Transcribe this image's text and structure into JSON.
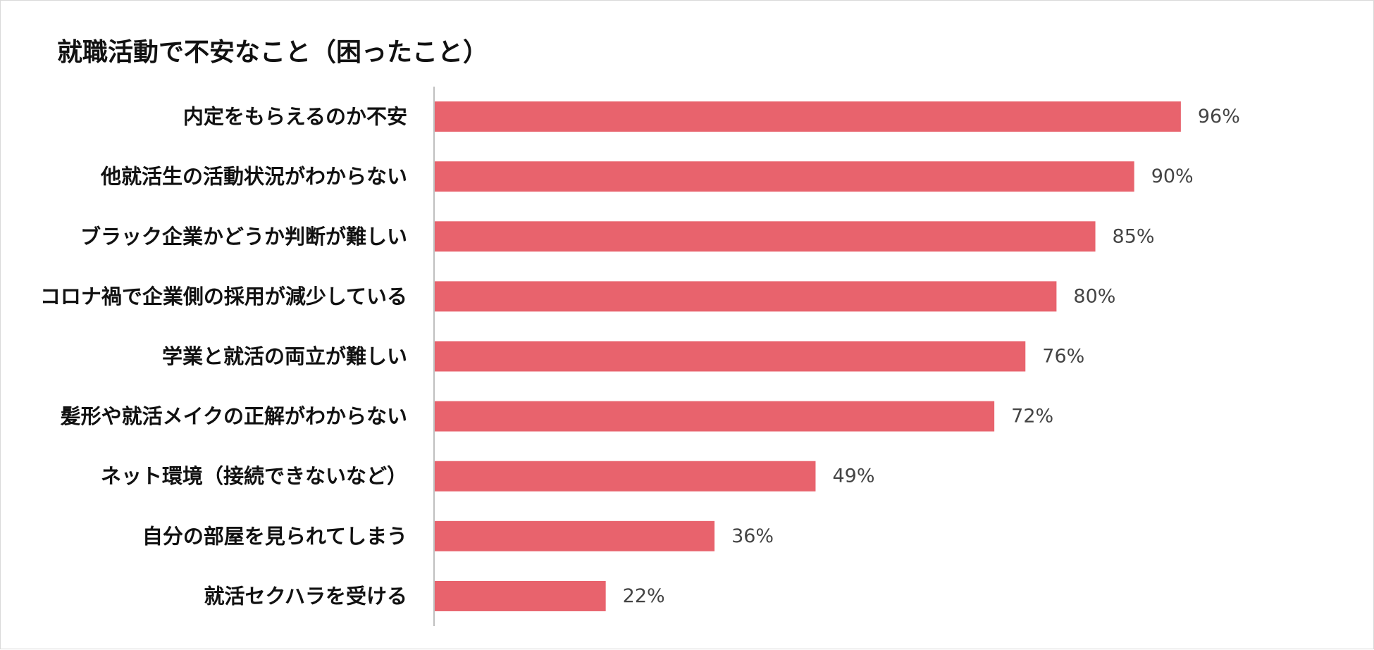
{
  "chart_data": {
    "type": "bar",
    "orientation": "horizontal",
    "title": "就職活動で不安なこと（困ったこと）",
    "categories": [
      "内定をもらえるのか不安",
      "他就活生の活動状況がわからない",
      "ブラック企業かどうか判断が難しい",
      "コロナ禍で企業側の採用が減少している",
      "学業と就活の両立が難しい",
      "髪形や就活メイクの正解がわからない",
      "ネット環境（接続できないなど）",
      "自分の部屋を見られてしまう",
      "就活セクハラを受ける"
    ],
    "values": [
      96,
      90,
      85,
      80,
      76,
      72,
      49,
      36,
      22
    ],
    "value_labels": [
      "96%",
      "90%",
      "85%",
      "80%",
      "76%",
      "72%",
      "49%",
      "36%",
      "22%"
    ],
    "xlim": [
      0,
      100
    ],
    "grid": false,
    "legend": "none",
    "bar_color": "#e8636d"
  }
}
